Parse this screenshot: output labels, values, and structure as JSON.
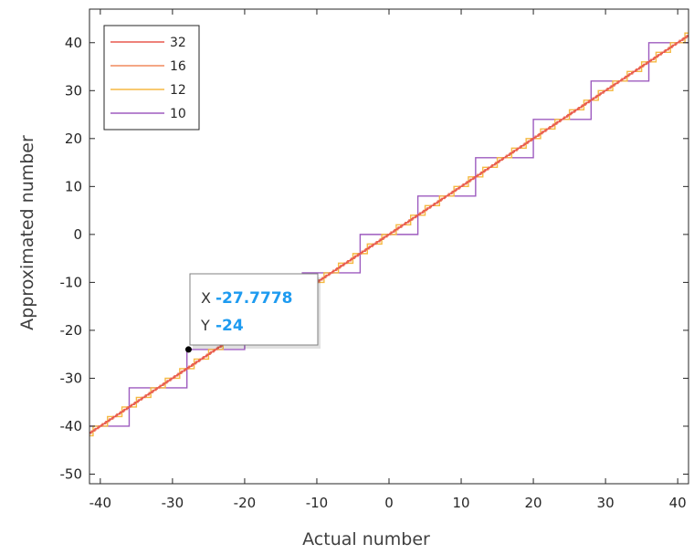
{
  "chart_data": {
    "type": "line",
    "xlabel": "Actual number",
    "ylabel": "Approximated number",
    "xlim": [
      -41.5,
      41.5
    ],
    "ylim": [
      -52,
      47
    ],
    "xticks": [
      -40,
      -30,
      -20,
      -10,
      0,
      10,
      20,
      30,
      40
    ],
    "yticks": [
      -50,
      -40,
      -30,
      -20,
      -10,
      0,
      10,
      20,
      30,
      40
    ],
    "grid": false,
    "legend_position": "top-left",
    "x_range": [
      -41.5,
      41.5
    ],
    "series": [
      {
        "name": "32",
        "color": "#e8584f",
        "step": 0.25
      },
      {
        "name": "16",
        "color": "#f08a5d",
        "step": 0.5
      },
      {
        "name": "12",
        "color": "#f5b942",
        "step": 2
      },
      {
        "name": "10",
        "color": "#9d5bbf",
        "step": 8
      }
    ],
    "datatip": {
      "x_label": "X",
      "x_value": "-27.7778",
      "y_label": "Y",
      "y_value": "-24",
      "x": -27.7778,
      "y": -24
    }
  }
}
